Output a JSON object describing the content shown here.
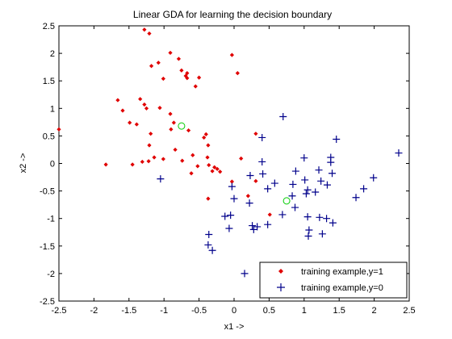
{
  "chart_data": {
    "type": "scatter",
    "title": "Linear GDA for learning the decision boundary",
    "xlabel": "x1 ->",
    "ylabel": "x2 ->",
    "xlim": [
      -2.5,
      2.5
    ],
    "ylim": [
      -2.5,
      2.5
    ],
    "xticks": [
      "-2.5",
      "-2",
      "-1.5",
      "-1",
      "-0.5",
      "0",
      "0.5",
      "1",
      "1.5",
      "2",
      "2.5"
    ],
    "yticks": [
      "-2.5",
      "-2",
      "-1.5",
      "-1",
      "-0.5",
      "0",
      "0.5",
      "1",
      "1.5",
      "2",
      "2.5"
    ],
    "grid": false,
    "legend_position": "bottom-right",
    "series": [
      {
        "name": "training example,y=1",
        "marker": "diamond",
        "color": "#e00000",
        "points": [
          [
            -1.28,
            2.43
          ],
          [
            -1.21,
            2.36
          ],
          [
            -1.08,
            1.83
          ],
          [
            -0.91,
            2.01
          ],
          [
            -0.03,
            1.97
          ],
          [
            -0.79,
            1.9
          ],
          [
            -0.75,
            1.69
          ],
          [
            -0.69,
            1.59
          ],
          [
            -0.67,
            1.64
          ],
          [
            -0.67,
            1.55
          ],
          [
            -0.5,
            1.56
          ],
          [
            -1.01,
            1.54
          ],
          [
            -0.55,
            1.4
          ],
          [
            0.05,
            1.64
          ],
          [
            -1.18,
            1.77
          ],
          [
            -1.66,
            1.15
          ],
          [
            -1.34,
            1.17
          ],
          [
            -1.28,
            1.07
          ],
          [
            -1.25,
            1.0
          ],
          [
            -1.59,
            0.96
          ],
          [
            -1.06,
            1.01
          ],
          [
            -0.91,
            0.9
          ],
          [
            -1.49,
            0.74
          ],
          [
            -1.39,
            0.71
          ],
          [
            -0.86,
            0.74
          ],
          [
            -0.9,
            0.62
          ],
          [
            -1.19,
            0.54
          ],
          [
            -1.21,
            0.33
          ],
          [
            -0.43,
            0.47
          ],
          [
            -0.4,
            0.53
          ],
          [
            -0.37,
            0.33
          ],
          [
            0.31,
            0.54
          ],
          [
            -2.5,
            0.62
          ],
          [
            -0.65,
            0.6
          ],
          [
            -0.84,
            0.25
          ],
          [
            -1.14,
            0.11
          ],
          [
            -1.01,
            0.08
          ],
          [
            -0.59,
            0.15
          ],
          [
            -0.38,
            0.11
          ],
          [
            0.1,
            0.09
          ],
          [
            -0.74,
            0.05
          ],
          [
            -1.83,
            -0.02
          ],
          [
            -1.45,
            -0.02
          ],
          [
            -1.31,
            0.03
          ],
          [
            -1.22,
            0.04
          ],
          [
            -0.52,
            -0.05
          ],
          [
            -0.36,
            -0.03
          ],
          [
            -0.28,
            -0.07
          ],
          [
            -0.24,
            -0.1
          ],
          [
            -0.61,
            -0.18
          ],
          [
            -0.31,
            -0.14
          ],
          [
            -0.2,
            -0.15
          ],
          [
            -0.03,
            -0.33
          ],
          [
            0.31,
            -0.32
          ],
          [
            -0.37,
            -0.64
          ],
          [
            0.2,
            -0.59
          ],
          [
            0.51,
            -0.93
          ]
        ]
      },
      {
        "name": "training example,y=0",
        "marker": "plus",
        "color": "#00008b",
        "points": [
          [
            0.7,
            0.85
          ],
          [
            1.46,
            0.44
          ],
          [
            2.35,
            0.19
          ],
          [
            1.38,
            0.11
          ],
          [
            1.0,
            0.1
          ],
          [
            0.4,
            0.47
          ],
          [
            0.4,
            0.03
          ],
          [
            1.38,
            0.02
          ],
          [
            1.21,
            -0.12
          ],
          [
            1.4,
            -0.18
          ],
          [
            0.88,
            -0.14
          ],
          [
            1.24,
            -0.32
          ],
          [
            1.01,
            -0.3
          ],
          [
            1.33,
            -0.39
          ],
          [
            0.41,
            -0.19
          ],
          [
            0.23,
            -0.22
          ],
          [
            1.99,
            -0.26
          ],
          [
            0.58,
            -0.36
          ],
          [
            1.05,
            -0.48
          ],
          [
            1.16,
            -0.52
          ],
          [
            1.03,
            -0.55
          ],
          [
            0.83,
            -0.59
          ],
          [
            1.85,
            -0.46
          ],
          [
            1.74,
            -0.62
          ],
          [
            0.48,
            -0.46
          ],
          [
            0.69,
            -0.93
          ],
          [
            0.87,
            -0.8
          ],
          [
            1.05,
            -0.97
          ],
          [
            1.22,
            -0.98
          ],
          [
            1.32,
            -1.0
          ],
          [
            1.41,
            -1.08
          ],
          [
            0.22,
            -0.72
          ],
          [
            0.0,
            -0.64
          ],
          [
            -0.05,
            -0.94
          ],
          [
            -0.13,
            -0.96
          ],
          [
            -0.07,
            -1.18
          ],
          [
            0.26,
            -1.13
          ],
          [
            0.33,
            -1.15
          ],
          [
            0.48,
            -1.11
          ],
          [
            0.28,
            -1.2
          ],
          [
            1.07,
            -1.21
          ],
          [
            1.26,
            -1.28
          ],
          [
            1.06,
            -1.32
          ],
          [
            -0.36,
            -1.29
          ],
          [
            -0.37,
            -1.48
          ],
          [
            -0.31,
            -1.58
          ],
          [
            0.15,
            -2.0
          ],
          [
            -1.05,
            -0.28
          ],
          [
            -0.03,
            -0.42
          ],
          [
            0.84,
            -0.38
          ]
        ]
      },
      {
        "name": "",
        "marker": "circle",
        "color": "#00cc00",
        "points": [
          [
            -0.75,
            0.68
          ],
          [
            0.75,
            -0.68
          ]
        ]
      }
    ]
  }
}
